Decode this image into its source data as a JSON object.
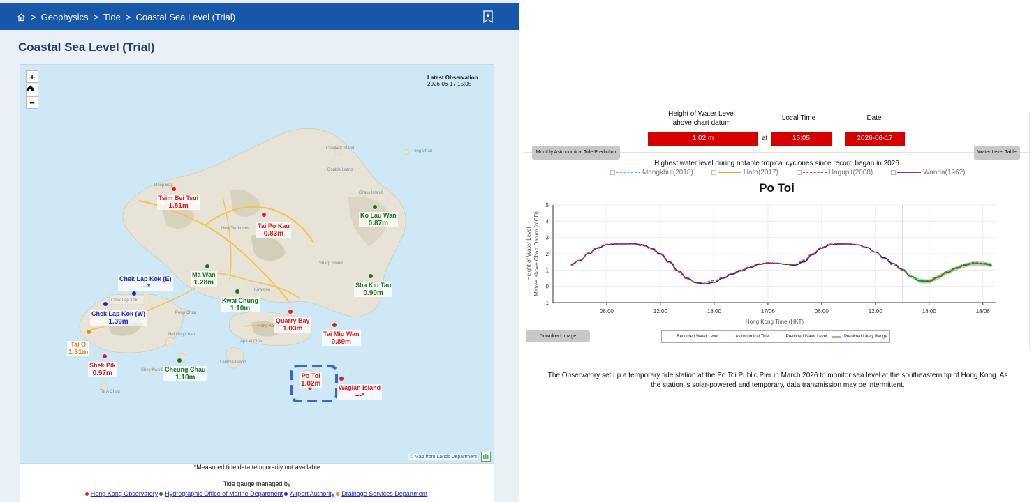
{
  "breadcrumb": {
    "items": [
      "Geophysics",
      "Tide",
      "Coastal Sea Level (Trial)"
    ],
    "separator": ">"
  },
  "page_title": "Coastal Sea Level (Trial)",
  "map": {
    "zoom_in": "+",
    "zoom_out": "−",
    "latest_observation_label": "Latest Observation",
    "latest_observation_time": "2026-06-17 15:05",
    "credit": "© Map from Lands Department",
    "stations": [
      {
        "name": "Tsim Bei Tsui",
        "value": "1.81m",
        "color": "red"
      },
      {
        "name": "Tai Po Kau",
        "value": "0.83m",
        "color": "red"
      },
      {
        "name": "Ko Lau Wan",
        "value": "0.87m",
        "color": "green"
      },
      {
        "name": "Chek Lap Kok (E)",
        "value": "---*",
        "color": "blue"
      },
      {
        "name": "Ma Wan",
        "value": "1.28m",
        "color": "green"
      },
      {
        "name": "Sha Kiu Tau",
        "value": "0.90m",
        "color": "green"
      },
      {
        "name": "Chek Lap Kok (W)",
        "value": "1.39m",
        "color": "blue"
      },
      {
        "name": "Kwai Chung",
        "value": "1.10m",
        "color": "green"
      },
      {
        "name": "Quarry Bay",
        "value": "1.03m",
        "color": "red"
      },
      {
        "name": "Tai O",
        "value": "1.31m",
        "color": "orange"
      },
      {
        "name": "Tai Miu Wan",
        "value": "0.89m",
        "color": "red"
      },
      {
        "name": "Shek Pik",
        "value": "0.97m",
        "color": "red"
      },
      {
        "name": "Cheung Chau",
        "value": "1.10m",
        "color": "green"
      },
      {
        "name": "Po Toi",
        "value": "1.02m",
        "color": "red"
      },
      {
        "name": "Waglan Island",
        "value": "---*",
        "color": "red"
      }
    ],
    "places": [
      "Deep Bay",
      "Crooked Island",
      "Double Island",
      "Ping Chau",
      "Grass Island",
      "New Territories",
      "Sharp Island",
      "Kowloon",
      "Peng Chau",
      "Chek Lap Kok",
      "Lantau Island",
      "Hei Ling Chau",
      "Shek Kwu Chau",
      "Hong Kong Island",
      "Ap Lei Chau",
      "Lamma Island",
      "Tai A Chau"
    ]
  },
  "note": "*Measured tide data temporarily not available",
  "managed_by": "Tide gauge managed by",
  "agencies": [
    {
      "name": "Hong Kong Observatory",
      "color": "#e21c1c"
    },
    {
      "name": "Hydrographic Office of Marine Department",
      "color": "#16781a"
    },
    {
      "name": "Airport Authority",
      "color": "#1a27c8"
    },
    {
      "name": "Drainage Services Department",
      "color": "#ef8418"
    }
  ],
  "readout": {
    "height_label_line1": "Height of Water Level",
    "height_label_line2": "above chart datum",
    "local_time_label": "Local Time",
    "date_label": "Date",
    "height_value": "1.02 m",
    "at": "at",
    "time_value": "15:05",
    "date_value": "2026-06-17"
  },
  "buttons": {
    "monthly_prediction": "Monthly Astronomical Tide Prediction",
    "water_level_table": "Water Level Table",
    "download_image": "Download Image"
  },
  "cyclones": {
    "title": "Highest water level during notable tropical cyclones since record began in 2026",
    "items": [
      {
        "name": "Mangkhut(2018)",
        "color": "#3cc6c6",
        "style": "dashed"
      },
      {
        "name": "Hato(2017)",
        "color": "#f0a030",
        "style": "solid"
      },
      {
        "name": "Hagupit(2008)",
        "color": "#e03040",
        "style": "dashed"
      },
      {
        "name": "Wanda(1962)",
        "color": "#8a2aa8",
        "style": "solid"
      }
    ]
  },
  "chart_data": {
    "type": "line",
    "title": "Po Toi",
    "xlabel": "Hong Kong Time (HKT)",
    "ylabel_line1": "Height of Water Level",
    "ylabel_line2": "Metres above Chart Datum (mCD)",
    "ylim": [
      -1,
      5
    ],
    "yticks": [
      "5",
      "4",
      "3",
      "2",
      "1",
      "0",
      "-1"
    ],
    "xlim_hours": [
      0,
      48
    ],
    "xticks": [
      {
        "hour": 6,
        "label": "06:00"
      },
      {
        "hour": 12,
        "label": "12:00"
      },
      {
        "hour": 18,
        "label": "18:00"
      },
      {
        "hour": 24,
        "label": "17/06"
      },
      {
        "hour": 30,
        "label": "06:00"
      },
      {
        "hour": 36,
        "label": "12:00"
      },
      {
        "hour": 42,
        "label": "18:00"
      },
      {
        "hour": 48,
        "label": "18/06"
      }
    ],
    "now_hour": 39.08,
    "series": [
      {
        "name": "Recorded Water Level",
        "color": "#1a1aa0",
        "style": "solid",
        "x": [
          2,
          3,
          4,
          5,
          6,
          7,
          8,
          9,
          10,
          11,
          12,
          13,
          14,
          15,
          16,
          17,
          18,
          19,
          20,
          21,
          22,
          23,
          24,
          25,
          26,
          27,
          28,
          29,
          30,
          31,
          32,
          33,
          34,
          35,
          36,
          37,
          38,
          39
        ],
        "y": [
          1.35,
          1.6,
          2.0,
          2.35,
          2.55,
          2.6,
          2.6,
          2.62,
          2.55,
          2.35,
          2.0,
          1.5,
          0.95,
          0.5,
          0.22,
          0.15,
          0.25,
          0.5,
          0.75,
          0.95,
          1.15,
          1.35,
          1.42,
          1.42,
          1.35,
          1.3,
          1.5,
          1.95,
          2.35,
          2.55,
          2.6,
          2.6,
          2.55,
          2.4,
          2.1,
          1.75,
          1.4,
          1.05
        ]
      },
      {
        "name": "Astronomical Tide",
        "color": "#e03040",
        "style": "dashed",
        "x": [
          2,
          3,
          4,
          5,
          6,
          7,
          8,
          9,
          10,
          11,
          12,
          13,
          14,
          15,
          16,
          17,
          18,
          19,
          20,
          21,
          22,
          23,
          24,
          25,
          26,
          27,
          28,
          29,
          30,
          31,
          32,
          33,
          34,
          35,
          36,
          37,
          38,
          39,
          40,
          41,
          42,
          43,
          44,
          45,
          46,
          47,
          48,
          49
        ],
        "y": [
          1.3,
          1.6,
          2.05,
          2.4,
          2.58,
          2.62,
          2.62,
          2.6,
          2.5,
          2.3,
          1.95,
          1.45,
          0.9,
          0.45,
          0.25,
          0.25,
          0.35,
          0.55,
          0.8,
          1.0,
          1.2,
          1.38,
          1.45,
          1.42,
          1.35,
          1.35,
          1.6,
          2.0,
          2.4,
          2.6,
          2.65,
          2.62,
          2.55,
          2.4,
          2.1,
          1.7,
          1.3,
          1.0,
          0.6,
          0.35,
          0.35,
          0.6,
          0.9,
          1.15,
          1.35,
          1.45,
          1.42,
          1.35
        ]
      },
      {
        "name": "Predicted Water Level",
        "color": "#1f8a1f",
        "style": "solid",
        "x": [
          39,
          40,
          41,
          42,
          43,
          44,
          45,
          46,
          47,
          48,
          49
        ],
        "y": [
          1.05,
          0.6,
          0.33,
          0.3,
          0.55,
          0.85,
          1.1,
          1.3,
          1.4,
          1.38,
          1.3
        ]
      },
      {
        "name": "Predicted Likely Range",
        "color": "#88c888",
        "style": "band",
        "x": [
          39,
          40,
          41,
          42,
          43,
          44,
          45,
          46,
          47,
          48,
          49
        ],
        "y_low": [
          1.0,
          0.5,
          0.2,
          0.17,
          0.42,
          0.72,
          0.97,
          1.17,
          1.27,
          1.25,
          1.17
        ],
        "y_high": [
          1.1,
          0.7,
          0.45,
          0.43,
          0.68,
          0.98,
          1.23,
          1.43,
          1.53,
          1.51,
          1.43
        ]
      }
    ]
  },
  "description": "The Observatory set up a temporary tide station at the Po Toi Public Pier in March 2026 to monitor sea level at the southeastern tip of Hong Kong. As the station is solar-powered and temporary, data transmission may be intermittent."
}
